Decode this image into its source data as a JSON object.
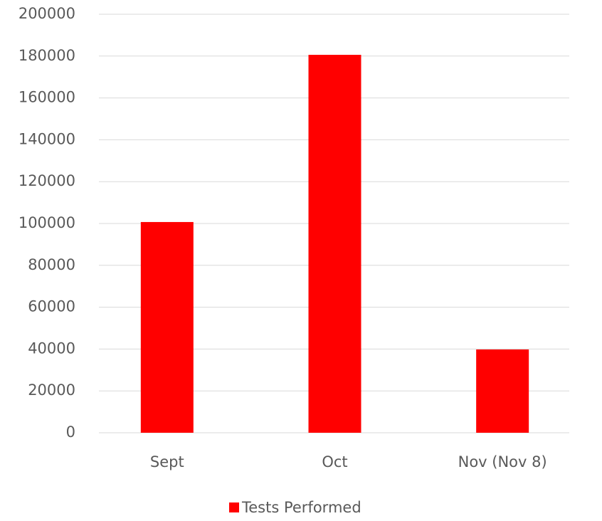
{
  "chart_data": {
    "type": "bar",
    "categories": [
      "Sept",
      "Oct",
      "Nov (Nov 8)"
    ],
    "series": [
      {
        "name": "Tests Performed",
        "color": "#ff0000",
        "values": [
          100700,
          180600,
          39800
        ]
      }
    ],
    "ylim": [
      0,
      200000
    ],
    "yticks": [
      0,
      20000,
      40000,
      60000,
      80000,
      100000,
      120000,
      140000,
      160000,
      180000,
      200000
    ],
    "grid": true,
    "legend": "bottom"
  }
}
